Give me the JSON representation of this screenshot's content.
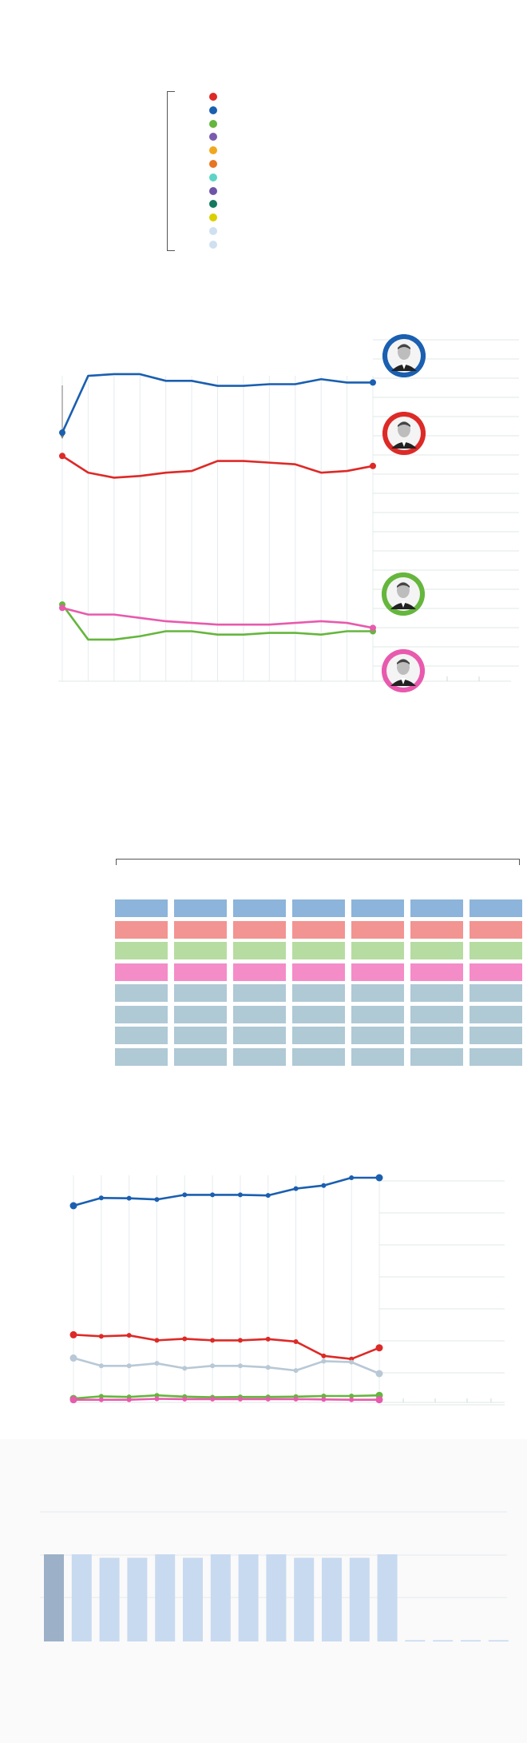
{
  "colors": {
    "pp": "#1a5fb0",
    "psoe": "#dd2a27",
    "vox": "#65b63d",
    "sumar": "#e85aad",
    "others": "#b8c8d6",
    "grid": "#dfe8e4"
  },
  "legend": {
    "dot_colors": [
      "#dd2a27",
      "#1a5fb0",
      "#65b63d",
      "#7a5cae",
      "#f0a81e",
      "#e87523",
      "#5fd4c4",
      "#6e55a8",
      "#137a5e",
      "#dad000",
      "#cfe0f0",
      "#cfe0f0"
    ]
  },
  "avatars": [
    {
      "name": "pp-leader-avatar",
      "color": "#1a5fb0"
    },
    {
      "name": "psoe-leader-avatar",
      "color": "#dd2a27"
    },
    {
      "name": "vox-leader-avatar",
      "color": "#65b63d"
    },
    {
      "name": "sumar-leader-avatar",
      "color": "#e85aad"
    }
  ],
  "seat_table": {
    "columns": 7,
    "row_colors": [
      "#8db4da",
      "#f29492",
      "#b7dca2",
      "#f48cc8",
      "#afc9d5",
      "#afc9d5",
      "#afc9d5",
      "#afc9d5"
    ]
  },
  "chart_data": [
    {
      "type": "line",
      "series": [
        {
          "color": "#1a5fb0",
          "values": [
            136,
            170,
            171,
            171,
            167,
            167,
            164,
            164,
            165,
            165,
            168,
            166,
            166
          ]
        },
        {
          "color": "#dd2a27",
          "values": [
            122,
            112,
            109,
            110,
            112,
            113,
            119,
            119,
            118,
            117,
            112,
            113,
            116
          ]
        },
        {
          "color": "#65b63d",
          "values": [
            33,
            12,
            12,
            14,
            17,
            17,
            15,
            15,
            16,
            16,
            15,
            17,
            17
          ]
        },
        {
          "color": "#e85aad",
          "values": [
            31,
            27,
            27,
            25,
            23,
            22,
            21,
            21,
            21,
            22,
            23,
            22,
            19
          ]
        }
      ]
    },
    {
      "type": "line",
      "series": [
        {
          "color": "#1a5fb0",
          "values": [
            63,
            65.5,
            65.4,
            65,
            66.5,
            66.5,
            66.5,
            66.3,
            68.5,
            69.5,
            72,
            72
          ]
        },
        {
          "color": "#dd2a27",
          "values": [
            21.5,
            21,
            21.3,
            19.7,
            20.2,
            19.7,
            19.7,
            20.1,
            19.3,
            14.7,
            13.7,
            17.3
          ]
        },
        {
          "color": "#b8c8d6",
          "values": [
            14,
            11.5,
            11.5,
            12.3,
            10.7,
            11.5,
            11.5,
            11,
            10,
            13,
            12.7,
            9
          ]
        },
        {
          "color": "#65b63d",
          "values": [
            1,
            1.7,
            1.5,
            2,
            1.6,
            1.4,
            1.5,
            1.5,
            1.6,
            1.8,
            1.8,
            2
          ]
        },
        {
          "color": "#e85aad",
          "values": [
            0.6,
            0.6,
            0.6,
            0.9,
            0.8,
            0.8,
            0.8,
            0.8,
            0.8,
            0.7,
            0.6,
            0.6
          ]
        }
      ]
    },
    {
      "type": "bar",
      "values": [
        100,
        100,
        96,
        96,
        100,
        96,
        100,
        100,
        100,
        96,
        96,
        96,
        100,
        1.5,
        1.5,
        1.5,
        1.5
      ],
      "highlight_color": "#9cb1c7",
      "bar_color": "#c8daf0"
    }
  ]
}
